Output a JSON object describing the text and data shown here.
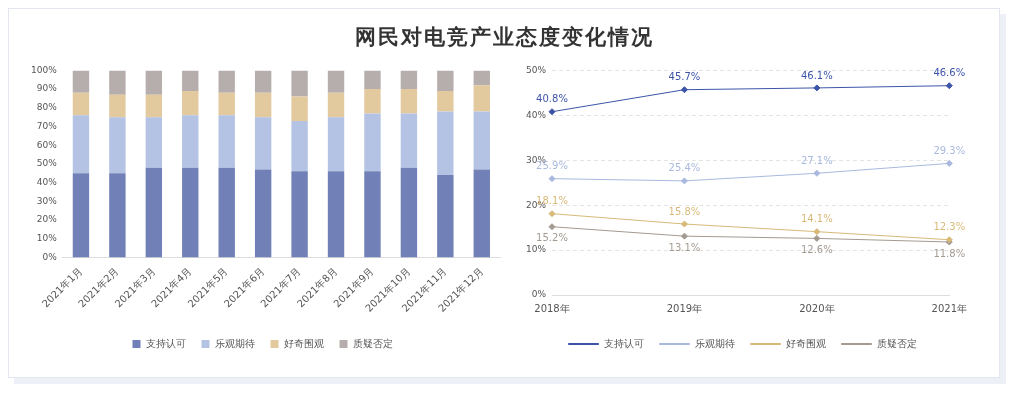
{
  "chart_data": [
    {
      "type": "bar",
      "title": "网民对电竞产业态度变化情况",
      "stacked": true,
      "categories": [
        "2021年1月",
        "2021年2月",
        "2021年3月",
        "2021年4月",
        "2021年5月",
        "2021年6月",
        "2021年7月",
        "2021年8月",
        "2021年9月",
        "2021年10月",
        "2021年11月",
        "2021年12月"
      ],
      "series": [
        {
          "name": "支持认可",
          "color": "#7180b6",
          "values": [
            45,
            45,
            48,
            48,
            48,
            47,
            46,
            46,
            46,
            48,
            44,
            47
          ]
        },
        {
          "name": "乐观期待",
          "color": "#b4c3e3",
          "values": [
            31,
            30,
            27,
            28,
            28,
            28,
            27,
            29,
            31,
            29,
            34,
            31
          ]
        },
        {
          "name": "好奇围观",
          "color": "#e2c99e",
          "values": [
            12,
            12,
            12,
            13,
            12,
            13,
            13,
            13,
            13,
            13,
            11,
            14
          ]
        },
        {
          "name": "质疑否定",
          "color": "#b6aead",
          "values": [
            12,
            13,
            13,
            11,
            12,
            12,
            14,
            12,
            10,
            10,
            11,
            8
          ]
        }
      ],
      "ylim": [
        0,
        100
      ],
      "yticks": [
        {
          "value": 0,
          "label": "0%"
        },
        {
          "value": 10,
          "label": "10%"
        },
        {
          "value": 20,
          "label": "20%"
        },
        {
          "value": 30,
          "label": "30%"
        },
        {
          "value": 40,
          "label": "40%"
        },
        {
          "value": 50,
          "label": "50%"
        },
        {
          "value": 60,
          "label": "60%"
        },
        {
          "value": 70,
          "label": "70%"
        },
        {
          "value": 80,
          "label": "80%"
        },
        {
          "value": 90,
          "label": "90%"
        },
        {
          "value": 100,
          "label": "100%"
        }
      ],
      "grid": false,
      "legend": "bottom"
    },
    {
      "type": "line",
      "categories": [
        "2018年",
        "2019年",
        "2020年",
        "2021年"
      ],
      "series": [
        {
          "name": "支持认可",
          "color": "#3d55a8",
          "values": [
            40.8,
            45.7,
            46.1,
            46.6
          ],
          "value_labels": [
            "40.8%",
            "45.7%",
            "46.1%",
            "46.6%"
          ]
        },
        {
          "name": "乐观期待",
          "color": "#a9b9de",
          "values": [
            25.9,
            25.4,
            27.1,
            29.3
          ],
          "value_labels": [
            "25.9%",
            "25.4%",
            "27.1%",
            "29.3%"
          ]
        },
        {
          "name": "好奇围观",
          "color": "#d8b978",
          "values": [
            18.1,
            15.8,
            14.1,
            12.3
          ],
          "value_labels": [
            "18.1%",
            "15.8%",
            "14.1%",
            "12.3%"
          ]
        },
        {
          "name": "质疑否定",
          "color": "#a39a92",
          "values": [
            15.2,
            13.1,
            12.6,
            11.8
          ],
          "value_labels": [
            "15.2%",
            "13.1%",
            "12.6%",
            "11.8%"
          ]
        }
      ],
      "ylim": [
        0,
        50
      ],
      "yticks": [
        {
          "value": 0,
          "label": "0%"
        },
        {
          "value": 10,
          "label": "10%"
        },
        {
          "value": 20,
          "label": "20%"
        },
        {
          "value": 30,
          "label": "30%"
        },
        {
          "value": 40,
          "label": "40%"
        },
        {
          "value": 50,
          "label": "50%"
        }
      ],
      "grid": "y",
      "legend": "bottom",
      "marker": "diamond",
      "line_style": "solid"
    }
  ]
}
